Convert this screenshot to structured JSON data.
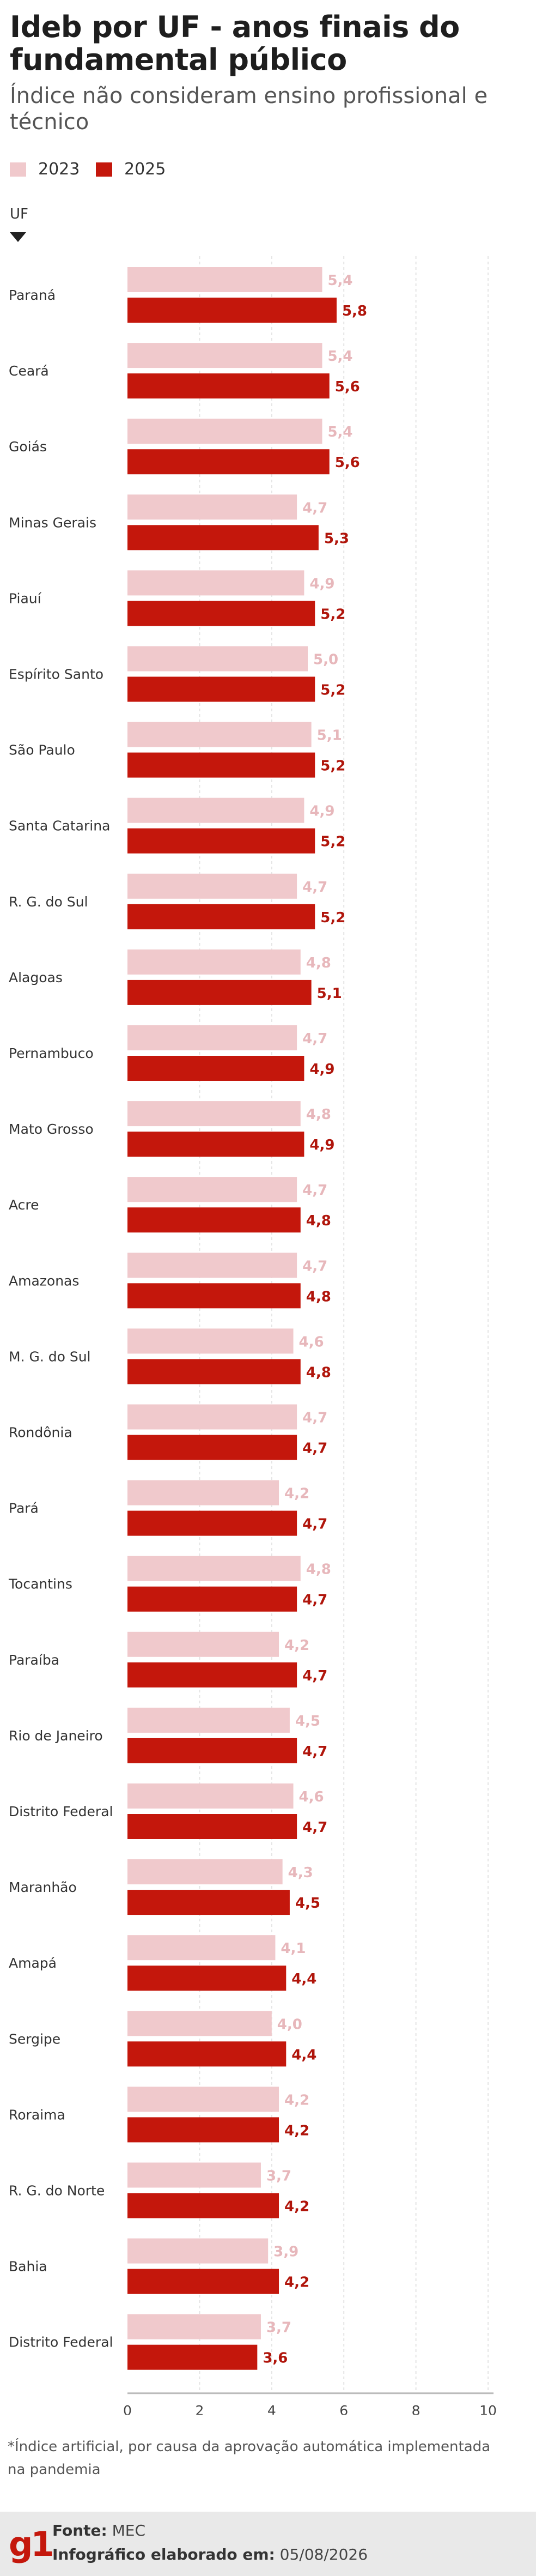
{
  "title": "Ideb por UF - anos finais do fundamental público",
  "subtitle": "Índice não consideram ensino profissional e técnico",
  "colors": {
    "2023": "#f0c9cc",
    "2025": "#c4170c",
    "label2023": "#e7b7bb",
    "label2025": "#b0150b"
  },
  "chart_data": {
    "type": "bar",
    "orientation": "horizontal",
    "ylabel": "UF",
    "categories": [
      "Paraná",
      "Ceará",
      "Goiás",
      "Minas Gerais",
      "Piauí",
      "Espírito Santo",
      "São Paulo",
      "Santa Catarina",
      "R. G. do Sul",
      "Alagoas",
      "Pernambuco",
      "Mato Grosso",
      "Acre",
      "Amazonas",
      "M. G. do Sul",
      "Rondônia",
      "Pará",
      "Tocantins",
      "Paraíba",
      "Rio de Janeiro",
      "Distrito Federal",
      "Maranhão",
      "Amapá",
      "Sergipe",
      "Roraima",
      "R. G. do Norte",
      "Bahia",
      "Distrito Federal"
    ],
    "series": [
      {
        "name": "2023",
        "values": [
          5.4,
          5.4,
          5.4,
          4.7,
          4.9,
          5.0,
          5.1,
          4.9,
          4.7,
          4.8,
          4.7,
          4.8,
          4.7,
          4.7,
          4.6,
          4.7,
          4.2,
          4.8,
          4.2,
          4.5,
          4.6,
          4.3,
          4.1,
          4.0,
          4.2,
          3.7,
          3.9,
          3.7
        ],
        "labels": [
          "5,4",
          "5,4",
          "5,4",
          "4,7",
          "4,9",
          "5,0",
          "5,1",
          "4,9",
          "4,7",
          "4,8",
          "4,7",
          "4,8",
          "4,7",
          "4,7",
          "4,6",
          "4,7",
          "4,2",
          "4,8",
          "4,2",
          "4,5",
          "4,6",
          "4,3",
          "4,1",
          "4,0",
          "4,2",
          "3,7",
          "3,9",
          "3,7"
        ]
      },
      {
        "name": "2025",
        "values": [
          5.8,
          5.6,
          5.6,
          5.3,
          5.2,
          5.2,
          5.2,
          5.2,
          5.2,
          5.1,
          4.9,
          4.9,
          4.8,
          4.8,
          4.8,
          4.7,
          4.7,
          4.7,
          4.7,
          4.7,
          4.7,
          4.5,
          4.4,
          4.4,
          4.2,
          4.2,
          4.2,
          3.6
        ],
        "labels": [
          "5,8",
          "5,6",
          "5,6",
          "5,3",
          "5,2",
          "5,2",
          "5,2",
          "5,2",
          "5,2",
          "5,1",
          "4,9",
          "4,9",
          "4,8",
          "4,8",
          "4,8",
          "4,7",
          "4,7",
          "4,7",
          "4,7",
          "4,7",
          "4,7",
          "4,5",
          "4,4",
          "4,4",
          "4,2",
          "4,2",
          "4,2",
          "3,6"
        ]
      }
    ],
    "xlim": [
      0,
      10
    ],
    "xticks": [
      "0",
      "2",
      "4",
      "6",
      "8",
      "10"
    ],
    "grid": true,
    "legend": "top-left"
  },
  "footnote": "*Índice artificial, por causa da aprovação automática implementada na pandemia",
  "footer": {
    "logo": "g1",
    "source_label": "Fonte:",
    "source_value": "MEC",
    "credit_label": "Infográfico elaborado em:",
    "credit_value": "05/08/2026"
  }
}
